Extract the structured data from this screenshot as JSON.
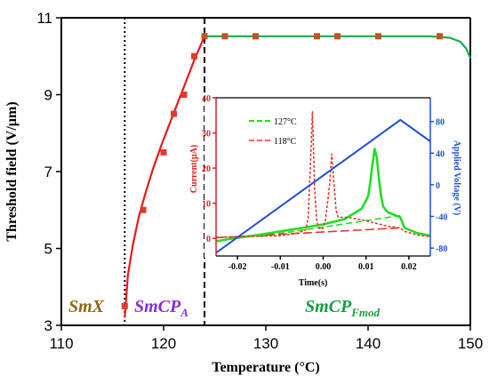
{
  "chart_data": [
    {
      "type": "line",
      "xlabel": "Temperature (°C)",
      "ylabel": "Threshold field (V/µm)",
      "xlim": [
        110,
        150
      ],
      "ylim": [
        3,
        11
      ],
      "xticks": [
        110,
        120,
        130,
        140,
        150
      ],
      "yticks": [
        3,
        5,
        7,
        9,
        11
      ],
      "colors": {
        "smcpa": "#e8191c",
        "smcpf": "#12b04a",
        "marker": "#e23a2a",
        "marker_f": "#c2541f",
        "smx_label": "#8b6914",
        "smcpa_label": "#8a2be2",
        "smcpf_label": "#12a040"
      },
      "phase_labels": {
        "smx": "SmX",
        "smcpa_main": "SmCP",
        "smcpa_sub": "A",
        "smcpf_main": "SmCP",
        "smcpf_sub": "Fmod"
      },
      "phase_boundaries": [
        116.2,
        124.0
      ],
      "series": [
        {
          "x": [
            116.2,
            118,
            120,
            121,
            122,
            123
          ],
          "y": [
            3.5,
            6.0,
            7.5,
            8.5,
            9.0,
            10.0
          ]
        },
        {
          "x": [
            124,
            126,
            129,
            135,
            137,
            141,
            147
          ],
          "y": [
            10.52,
            10.52,
            10.52,
            10.52,
            10.52,
            10.52,
            10.52
          ]
        }
      ],
      "fit_lines": [
        {
          "x": [
            116.2,
            116.5,
            117,
            117.6,
            118.3,
            119,
            119.8,
            120.6,
            121.4,
            122.2,
            123,
            124
          ],
          "y": [
            3.2,
            4.3,
            5.1,
            5.85,
            6.5,
            7.1,
            7.7,
            8.25,
            8.8,
            9.35,
            9.9,
            10.52
          ]
        },
        {
          "x": [
            124,
            130,
            140,
            146,
            148,
            149,
            149.6,
            150
          ],
          "y": [
            10.52,
            10.52,
            10.52,
            10.52,
            10.48,
            10.38,
            10.2,
            9.95
          ]
        }
      ]
    },
    {
      "type": "line",
      "xlabel": "Time(s)",
      "ylabel": "Current(µA)",
      "y2label": "Applied Voltage (V)",
      "xlim": [
        -0.025,
        0.025
      ],
      "ylim": [
        -5,
        40
      ],
      "y2lim": [
        -90,
        110
      ],
      "xticks": [
        -0.02,
        -0.01,
        0,
        0.01,
        0.02
      ],
      "xtick_labels": [
        "-0.02",
        "-0.01",
        "0.00",
        "0.01",
        "0.02"
      ],
      "yticks": [
        0,
        10,
        20,
        30,
        40
      ],
      "y2ticks": [
        -80,
        -40,
        0,
        40,
        80
      ],
      "colors": {
        "current_axis": "#e8191c",
        "voltage_axis": "#1f4fd6",
        "c127": "#22dd22",
        "c118": "#e23a2a",
        "voltage": "#1f4fd6"
      },
      "legend": [
        "127°C",
        "118°C"
      ],
      "series": [
        {
          "x": [
            -0.025,
            -0.02,
            -0.015,
            -0.01,
            -0.005,
            0,
            0.005,
            0.009,
            0.0105,
            0.011,
            0.0115,
            0.012,
            0.0125,
            0.013,
            0.0135,
            0.014,
            0.015,
            0.017,
            0.018,
            0.019,
            0.022,
            0.025
          ],
          "y": [
            -0.8,
            0.2,
            1.0,
            2.0,
            3.0,
            4.0,
            5.5,
            8.5,
            12.0,
            16.0,
            21.0,
            25.5,
            23.0,
            17.0,
            12.0,
            9.0,
            7.5,
            6.5,
            6.0,
            3.0,
            1.5,
            0.8
          ]
        },
        {
          "x": [
            -0.025,
            -0.01,
            -0.006,
            -0.004,
            -0.0035,
            -0.003,
            -0.0025,
            -0.002,
            -0.0015,
            -0.001,
            -0.0005,
            0,
            0.0005,
            0.0015,
            0.002,
            0.0025,
            0.003,
            0.0035,
            0.004,
            0.006,
            0.01,
            0.015,
            0.018,
            0.019,
            0.022,
            0.025
          ],
          "y": [
            0.3,
            0.8,
            1.5,
            2.5,
            6.0,
            20.0,
            36.0,
            14.0,
            5.0,
            3.0,
            2.5,
            3.0,
            5.0,
            15.0,
            24.0,
            16.0,
            8.0,
            6.0,
            6.0,
            6.0,
            5.0,
            3.5,
            3.0,
            2.0,
            1.0,
            0.5
          ]
        },
        {
          "x": [
            -0.025,
            0.018,
            0.025
          ],
          "y": [
            -86,
            82,
            55
          ]
        }
      ],
      "baselines": [
        {
          "x": [
            -0.015,
            0.018
          ],
          "y": [
            0.5,
            6.5
          ]
        },
        {
          "x": [
            -0.025,
            0.018
          ],
          "y": [
            0.2,
            3.0
          ]
        }
      ]
    }
  ]
}
